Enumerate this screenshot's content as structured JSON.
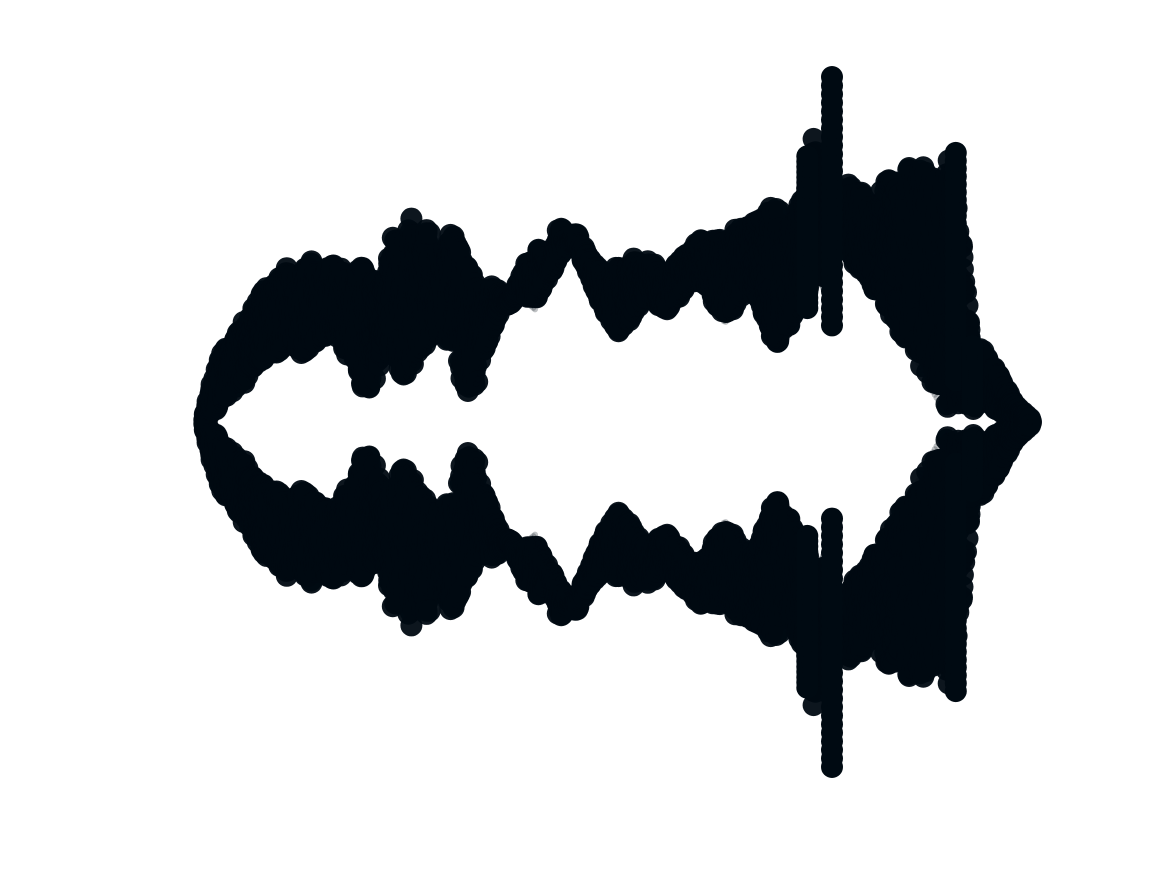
{
  "chart_data": {
    "type": "scatter",
    "title": "",
    "xlabel": "",
    "ylabel": "",
    "axes_visible": false,
    "grid": false,
    "legend": "none",
    "xlim": [
      0,
      100
    ],
    "ylim": [
      -1.05,
      1.05
    ],
    "marker_color": "#000a12",
    "marker_edge_color": "#0a2a3a",
    "background": "#ffffff",
    "series": [
      {
        "x": [
          0,
          1,
          2,
          3,
          4,
          5,
          6,
          7,
          8,
          9,
          10,
          11,
          12,
          13,
          14,
          15,
          16,
          17,
          18,
          19,
          20,
          21,
          22,
          23,
          24,
          25,
          26,
          27,
          28,
          29,
          30,
          31,
          32,
          33,
          34,
          35,
          36,
          37,
          38,
          39,
          40,
          41,
          42,
          43,
          44,
          45,
          46,
          47,
          48,
          49,
          50,
          51,
          52,
          53,
          54,
          55,
          56,
          57,
          58,
          59,
          60,
          61,
          62,
          63,
          64,
          65,
          66,
          67,
          68,
          69,
          70,
          71,
          72,
          73,
          74,
          75,
          76,
          77,
          78,
          79,
          80,
          81,
          82,
          83,
          84,
          85,
          86,
          87,
          88,
          89,
          90,
          91,
          92,
          93,
          94,
          95,
          96,
          97,
          98,
          99,
          100
        ],
        "outer": [
          0.02,
          0.12,
          0.2,
          0.22,
          0.26,
          0.3,
          0.33,
          0.38,
          0.4,
          0.42,
          0.45,
          0.43,
          0.44,
          0.47,
          0.43,
          0.45,
          0.47,
          0.42,
          0.44,
          0.45,
          0.43,
          0.4,
          0.42,
          0.56,
          0.5,
          0.6,
          0.52,
          0.57,
          0.48,
          0.5,
          0.56,
          0.5,
          0.45,
          0.4,
          0.38,
          0.4,
          0.37,
          0.35,
          0.4,
          0.46,
          0.48,
          0.52,
          0.44,
          0.58,
          0.5,
          0.55,
          0.5,
          0.46,
          0.44,
          0.43,
          0.45,
          0.44,
          0.48,
          0.46,
          0.47,
          0.44,
          0.42,
          0.46,
          0.48,
          0.5,
          0.53,
          0.52,
          0.55,
          0.52,
          0.56,
          0.56,
          0.58,
          0.58,
          0.6,
          0.64,
          0.62,
          0.57,
          0.64,
          0.69,
          0.84,
          0.7,
          0.62,
          0.65,
          0.7,
          0.68,
          0.65,
          0.6,
          0.67,
          0.72,
          0.68,
          0.73,
          0.76,
          0.74,
          0.7,
          0.76,
          0.78,
          0.72,
          0.46,
          0.2,
          0.22,
          0.18,
          0.15,
          0.1,
          0.05,
          0.03,
          0.01
        ],
        "inner": [
          0.0,
          0.03,
          0.06,
          0.08,
          0.1,
          0.12,
          0.15,
          0.18,
          0.2,
          0.2,
          0.24,
          0.22,
          0.19,
          0.22,
          0.24,
          0.26,
          0.25,
          0.2,
          0.18,
          0.1,
          0.1,
          0.14,
          0.24,
          0.18,
          0.12,
          0.16,
          0.2,
          0.24,
          0.26,
          0.24,
          0.22,
          0.12,
          0.08,
          0.12,
          0.2,
          0.28,
          0.34,
          0.34,
          0.38,
          0.36,
          0.34,
          0.4,
          0.44,
          0.48,
          0.54,
          0.52,
          0.46,
          0.4,
          0.34,
          0.29,
          0.26,
          0.28,
          0.31,
          0.35,
          0.36,
          0.34,
          0.32,
          0.35,
          0.38,
          0.4,
          0.41,
          0.38,
          0.34,
          0.3,
          0.32,
          0.36,
          0.38,
          0.36,
          0.28,
          0.22,
          0.24,
          0.28,
          0.36,
          0.38,
          0.44,
          0.4,
          0.6,
          0.55,
          0.49,
          0.45,
          0.42,
          0.38,
          0.36,
          0.32,
          0.26,
          0.24,
          0.2,
          0.15,
          0.1,
          0.06,
          0.03,
          0.05,
          0.04,
          0.03,
          0.06,
          0.05,
          0.03,
          0.02,
          0.02,
          0.01,
          0.0
        ],
        "spikes": [
          {
            "x": 76,
            "top": 1.0,
            "bottom": -1.0,
            "inner": 0.28
          },
          {
            "x": 73,
            "top": 0.77,
            "bottom": -0.77,
            "inner": 0.33
          },
          {
            "x": 91,
            "top": 0.78,
            "bottom": -0.78,
            "inner": 0.12
          },
          {
            "x": 93,
            "top": 0.22,
            "bottom": -0.2,
            "inner": 0.05
          }
        ]
      }
    ]
  }
}
